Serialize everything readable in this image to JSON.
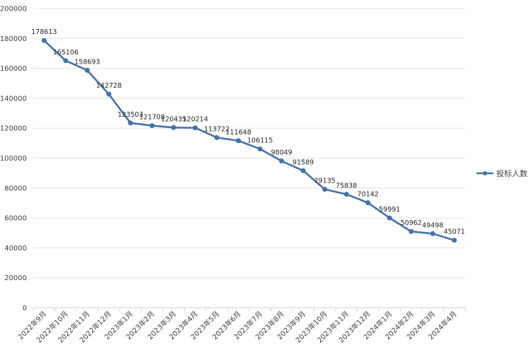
{
  "chart_data": {
    "type": "line",
    "title": "",
    "xlabel": "",
    "ylabel": "",
    "ylim": [
      0,
      200000
    ],
    "ytick_step": 20000,
    "grid": true,
    "legend_position": "right",
    "categories": [
      "2022年9月",
      "2022年10月",
      "2022年11月",
      "2022年12月",
      "2023年1月",
      "2023年2月",
      "2023年3月",
      "2023年4月",
      "2023年5月",
      "2023年6月",
      "2023年7月",
      "2023年8月",
      "2023年9月",
      "2023年10月",
      "2023年11月",
      "2023年12月",
      "2024年1月",
      "2024年2月",
      "2024年3月",
      "2024年4月"
    ],
    "series": [
      {
        "name": "投标人数",
        "color": "#4472A8",
        "values": [
          178613,
          165106,
          158693,
          142728,
          123503,
          121708,
          120435,
          120214,
          113722,
          111648,
          106115,
          98049,
          91589,
          79135,
          75838,
          70142,
          59991,
          50962,
          49498,
          45071
        ]
      }
    ]
  }
}
